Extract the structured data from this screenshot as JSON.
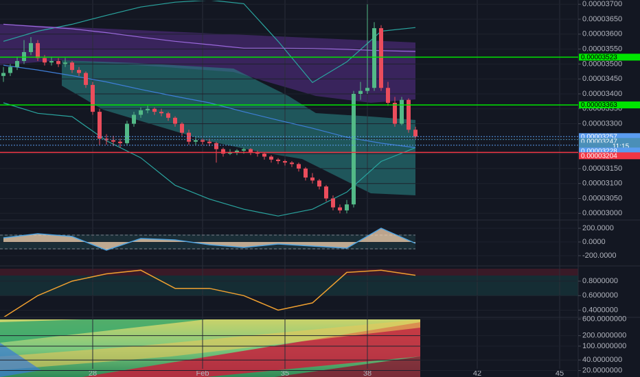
{
  "chart_data": [
    {
      "type": "candlestick",
      "xlim": [
        24.625,
        45.625
      ],
      "xticks": [
        28,
        {
          "value": 32,
          "label": "Feb"
        },
        35,
        38,
        42,
        45
      ],
      "ylim": [
        2.98e-05,
        3.712e-05
      ],
      "yticks": [
        {
          "value": 3e-05,
          "label": "0.00003000"
        },
        {
          "value": 3.05e-05,
          "label": "0.00003050"
        },
        {
          "value": 3.1e-05,
          "label": "0.00003100"
        },
        {
          "value": 3.15e-05,
          "label": "0.00003150"
        },
        {
          "value": 3.2e-05,
          "label": "0.00003200"
        },
        {
          "value": 3.25e-05,
          "label": "0.00003250"
        },
        {
          "value": 3.3e-05,
          "label": "0.00003300"
        },
        {
          "value": 3.35e-05,
          "label": "0.00003350"
        },
        {
          "value": 3.4e-05,
          "label": "0.00003400"
        },
        {
          "value": 3.45e-05,
          "label": "0.00003450"
        },
        {
          "value": 3.5e-05,
          "label": "0.00003500"
        },
        {
          "value": 3.55e-05,
          "label": "0.00003550"
        },
        {
          "value": 3.6e-05,
          "label": "0.00003600"
        },
        {
          "value": 3.65e-05,
          "label": "0.00003650"
        },
        {
          "value": 3.7e-05,
          "label": "0.00003700"
        }
      ],
      "up_color": "#53b987",
      "down_color": "#eb4d5c",
      "x": [
        24.75,
        25,
        25.25,
        25.5,
        25.75,
        26,
        26.25,
        26.5,
        26.75,
        27,
        27.25,
        27.5,
        27.75,
        28,
        28.25,
        28.5,
        28.75,
        29,
        29.25,
        29.5,
        29.75,
        30,
        30.25,
        30.5,
        30.75,
        31,
        31.25,
        31.5,
        31.75,
        32,
        32.25,
        32.5,
        32.75,
        33,
        33.25,
        33.5,
        33.75,
        34,
        34.25,
        34.5,
        34.75,
        35,
        35.25,
        35.5,
        35.75,
        36,
        36.25,
        36.5,
        36.75,
        37,
        37.25,
        37.5,
        37.75,
        38,
        38.25,
        38.5,
        38.75,
        39,
        39.25,
        39.5,
        39.75
      ],
      "open": [
        3.46e-05,
        3.47e-05,
        3.49e-05,
        3.51e-05,
        3.54e-05,
        3.57e-05,
        3.52e-05,
        3.505e-05,
        3.51e-05,
        3.5e-05,
        3.505e-05,
        3.48e-05,
        3.47e-05,
        3.43e-05,
        3.34e-05,
        3.25e-05,
        3.245e-05,
        3.24e-05,
        3.235e-05,
        3.3e-05,
        3.33e-05,
        3.345e-05,
        3.35e-05,
        3.34e-05,
        3.335e-05,
        3.32e-05,
        3.3e-05,
        3.27e-05,
        3.24e-05,
        3.245e-05,
        3.24e-05,
        3.235e-05,
        3.215e-05,
        3.2e-05,
        3.205e-05,
        3.21e-05,
        3.215e-05,
        3.205e-05,
        3.2e-05,
        3.19e-05,
        3.18e-05,
        3.175e-05,
        3.17e-05,
        3.165e-05,
        3.15e-05,
        3.12e-05,
        3.11e-05,
        3.09e-05,
        3.05e-05,
        3.02e-05,
        3.01e-05,
        3.03e-05,
        3.4e-05,
        3.41e-05,
        3.42e-05,
        3.62e-05,
        3.42e-05,
        3.37e-05,
        3.3e-05,
        3.38e-05,
        3.28e-05
      ],
      "high": [
        3.49e-05,
        3.5e-05,
        3.525e-05,
        3.58e-05,
        3.59e-05,
        3.58e-05,
        3.53e-05,
        3.525e-05,
        3.52e-05,
        3.52e-05,
        3.51e-05,
        3.49e-05,
        3.475e-05,
        3.44e-05,
        3.35e-05,
        3.265e-05,
        3.26e-05,
        3.25e-05,
        3.31e-05,
        3.34e-05,
        3.355e-05,
        3.36e-05,
        3.355e-05,
        3.35e-05,
        3.34e-05,
        3.325e-05,
        3.305e-05,
        3.28e-05,
        3.255e-05,
        3.25e-05,
        3.25e-05,
        3.24e-05,
        3.22e-05,
        3.215e-05,
        3.215e-05,
        3.22e-05,
        3.218e-05,
        3.21e-05,
        3.205e-05,
        3.195e-05,
        3.185e-05,
        3.18e-05,
        3.175e-05,
        3.17e-05,
        3.155e-05,
        3.135e-05,
        3.115e-05,
        3.095e-05,
        3.06e-05,
        3.03e-05,
        3.045e-05,
        3.41e-05,
        3.44e-05,
        3.7e-05,
        3.64e-05,
        3.63e-05,
        3.44e-05,
        3.39e-05,
        3.39e-05,
        3.385e-05,
        3.29e-05
      ],
      "low": [
        3.44e-05,
        3.46e-05,
        3.48e-05,
        3.5e-05,
        3.53e-05,
        3.51e-05,
        3.495e-05,
        3.495e-05,
        3.49e-05,
        3.49e-05,
        3.47e-05,
        3.46e-05,
        3.42e-05,
        3.33e-05,
        3.23e-05,
        3.23e-05,
        3.225e-05,
        3.22e-05,
        3.23e-05,
        3.29e-05,
        3.32e-05,
        3.335e-05,
        3.33e-05,
        3.325e-05,
        3.31e-05,
        3.29e-05,
        3.26e-05,
        3.23e-05,
        3.23e-05,
        3.23e-05,
        3.225e-05,
        3.17e-05,
        3.19e-05,
        3.195e-05,
        3.195e-05,
        3.2e-05,
        3.195e-05,
        3.19e-05,
        3.18e-05,
        3.17e-05,
        3.165e-05,
        3.16e-05,
        3.155e-05,
        3.14e-05,
        3.11e-05,
        3.1e-05,
        3.08e-05,
        3.04e-05,
        3.01e-05,
        3e-05,
        3e-05,
        3.02e-05,
        3.38e-05,
        3.4e-05,
        3.41e-05,
        3.41e-05,
        3.36e-05,
        3.29e-05,
        3.295e-05,
        3.27e-05,
        3.25e-05
      ],
      "close": [
        3.47e-05,
        3.49e-05,
        3.51e-05,
        3.54e-05,
        3.57e-05,
        3.52e-05,
        3.505e-05,
        3.51e-05,
        3.5e-05,
        3.505e-05,
        3.48e-05,
        3.47e-05,
        3.43e-05,
        3.34e-05,
        3.25e-05,
        3.245e-05,
        3.24e-05,
        3.235e-05,
        3.3e-05,
        3.33e-05,
        3.345e-05,
        3.35e-05,
        3.34e-05,
        3.335e-05,
        3.32e-05,
        3.3e-05,
        3.27e-05,
        3.24e-05,
        3.245e-05,
        3.24e-05,
        3.235e-05,
        3.215e-05,
        3.2e-05,
        3.205e-05,
        3.21e-05,
        3.215e-05,
        3.205e-05,
        3.2e-05,
        3.19e-05,
        3.18e-05,
        3.175e-05,
        3.17e-05,
        3.165e-05,
        3.15e-05,
        3.12e-05,
        3.11e-05,
        3.09e-05,
        3.05e-05,
        3.02e-05,
        3.01e-05,
        3.03e-05,
        3.4e-05,
        3.41e-05,
        3.42e-05,
        3.62e-05,
        3.42e-05,
        3.37e-05,
        3.3e-05,
        3.38e-05,
        3.28e-05,
        3.257e-05
      ],
      "overlays": [
        {
          "color": "#2aa6a0",
          "x": [
            24.75,
            26,
            27.25,
            28.5,
            29.75,
            31,
            32.25,
            33.5,
            34.75,
            36,
            37.25,
            38.5,
            39.75
          ],
          "values": [
            3.576e-05,
            3.61e-05,
            3.633e-05,
            3.663e-05,
            3.691e-05,
            3.707e-05,
            3.714e-05,
            3.702e-05,
            3.576e-05,
            3.438e-05,
            3.507e-05,
            3.61e-05,
            3.622e-05
          ]
        },
        {
          "color": "#2aa6a0",
          "x": [
            24.75,
            26,
            27.25,
            28.5,
            29.75,
            31,
            32.25,
            33.5,
            34.75,
            36,
            37.25,
            38.5,
            39.75
          ],
          "values": [
            3.37e-05,
            3.335e-05,
            3.324e-05,
            3.243e-05,
            3.186e-05,
            3.094e-05,
            3.048e-05,
            3.014e-05,
            2.991e-05,
            3.014e-05,
            3.071e-05,
            3.174e-05,
            3.22e-05
          ]
        },
        {
          "color": "#9c6ade",
          "x": [
            24.75,
            26,
            27.25,
            28.5,
            29.75,
            31,
            32.25,
            33.5,
            34.75,
            36,
            37.25,
            38.5,
            39.75
          ],
          "values": [
            3.633e-05,
            3.625e-05,
            3.618e-05,
            3.605e-05,
            3.59e-05,
            3.576e-05,
            3.565e-05,
            3.553e-05,
            3.553e-05,
            3.552e-05,
            3.549e-05,
            3.545e-05,
            3.542e-05
          ]
        },
        {
          "color": "#3f7fd9",
          "x": [
            24.75,
            26,
            27.25,
            28.5,
            29.75,
            31,
            32.25,
            33.5,
            34.75,
            36,
            37.25,
            38.5,
            39.75
          ],
          "values": [
            3.496e-05,
            3.48e-05,
            3.461e-05,
            3.44e-05,
            3.415e-05,
            3.392e-05,
            3.37e-05,
            3.34e-05,
            3.312e-05,
            3.285e-05,
            3.255e-05,
            3.235e-05,
            3.22e-05
          ]
        }
      ],
      "price_lines": [
        {
          "value": 3.523e-05,
          "label": "0.00003523",
          "color": "#00e600"
        },
        {
          "value": 3.363e-05,
          "label": "0.00003363",
          "color": "#00e600"
        },
        {
          "value": 3.257e-05,
          "label": "0.00003257",
          "color": "#5b9cf0"
        },
        {
          "value": 3.247e-05,
          "label": "0.00003247",
          "color": "#4a8fb8"
        },
        {
          "value": 3.228e-05,
          "label": "0.00003228",
          "color": "#5b9cf0"
        },
        {
          "value": 3.204e-05,
          "label": "0.00003204",
          "color": "#f23645"
        }
      ],
      "countdown": "11:15"
    },
    {
      "type": "line",
      "ylim": [
        -330,
        310
      ],
      "yticks": [
        {
          "value": 200,
          "label": "200.0000"
        },
        {
          "value": 0,
          "label": "0.0000"
        },
        {
          "value": -200,
          "label": "-200.0000"
        }
      ],
      "levels": [
        100,
        -100
      ],
      "color": "#4fa3e0",
      "x": [
        24.75,
        26,
        27.25,
        28.5,
        29.75,
        31,
        32.25,
        33.5,
        34.75,
        36,
        37.25,
        38.5,
        39.75
      ],
      "values": [
        60,
        120,
        80,
        -120,
        50,
        30,
        -40,
        -80,
        -30,
        -60,
        -90,
        200,
        -20
      ]
    },
    {
      "type": "line",
      "ylim": [
        0.31,
        0.99
      ],
      "yticks": [
        {
          "value": 0.8,
          "label": "0.8000000"
        },
        {
          "value": 0.6,
          "label": "0.6000000"
        },
        {
          "value": 0.4,
          "label": "0.4000000"
        }
      ],
      "color": "#f0a030",
      "x": [
        24.75,
        26,
        27.25,
        28.5,
        29.75,
        31,
        32.25,
        33.5,
        34.75,
        36,
        37.25,
        38.5,
        39.75
      ],
      "values": [
        0.3,
        0.6,
        0.8,
        0.9,
        0.95,
        0.7,
        0.7,
        0.6,
        0.4,
        0.5,
        0.92,
        0.95,
        0.88
      ]
    },
    {
      "type": "heatmap",
      "log_scale": true,
      "ylim": [
        13,
        700
      ],
      "yticks": [
        {
          "value": 600,
          "label": "600.0000000"
        },
        {
          "value": 200,
          "label": "200.0000000"
        },
        {
          "value": 100,
          "label": "100.0000000"
        },
        {
          "value": 40,
          "label": "40.0000000"
        },
        {
          "value": 20,
          "label": "20.0000000"
        }
      ]
    }
  ]
}
